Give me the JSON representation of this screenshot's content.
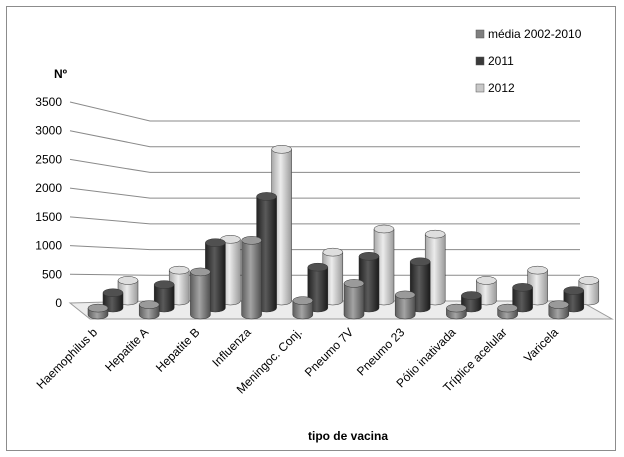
{
  "chart_data": {
    "type": "bar",
    "variant": "3d-clustered-cylinder",
    "xlabel": "tipo de vacina",
    "ylabel": "Nº",
    "ylim": [
      0,
      3500
    ],
    "yticks": [
      "0",
      "500",
      "1000",
      "1500",
      "2000",
      "2500",
      "3000",
      "3500"
    ],
    "grid": true,
    "legend_position": "top-right",
    "categories": [
      "Haemophilus b",
      "Hepatite A",
      "Hepatite B",
      "Influenza",
      "Meningoc. Conj.",
      "Pneumo 7V",
      "Pneumo 23",
      "Pólio inativada",
      "Tríplice acelular",
      "Varicela"
    ],
    "series": [
      {
        "name": "média 2002-2010",
        "color": "#7f7f7f",
        "values": [
          120,
          180,
          750,
          1300,
          250,
          550,
          350,
          120,
          120,
          180
        ]
      },
      {
        "name": "2011",
        "color": "#3a3a3a",
        "values": [
          280,
          430,
          1200,
          2050,
          750,
          950,
          850,
          230,
          380,
          320
        ]
      },
      {
        "name": "2012",
        "color": "#c8c8c8",
        "values": [
          400,
          600,
          1200,
          2950,
          950,
          1400,
          1300,
          400,
          600,
          400
        ]
      }
    ]
  }
}
